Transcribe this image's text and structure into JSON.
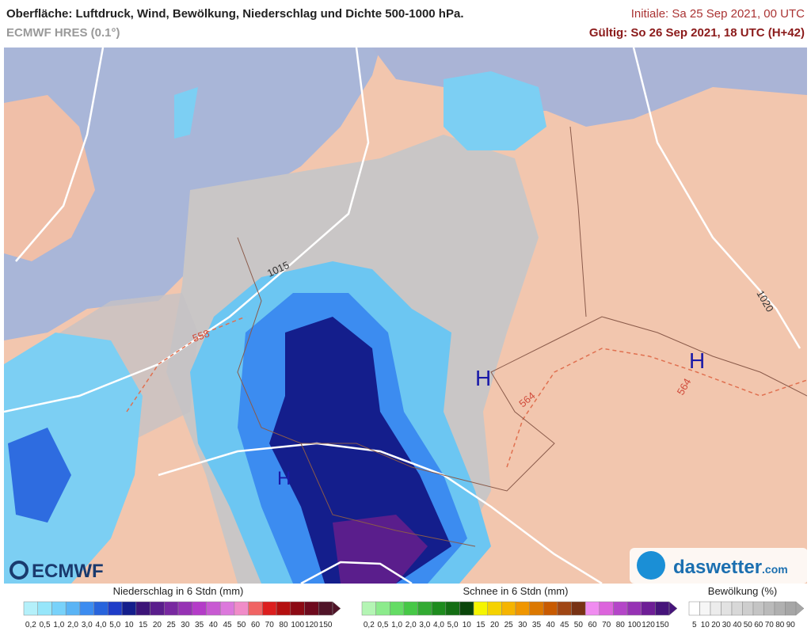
{
  "header": {
    "title": "Oberfläche: Luftdruck, Wind, Bewölkung, Niederschlag und Dichte 500-1000 hPa.",
    "model": "ECMWF HRES (0.1°)",
    "initial": "Initiale: Sa 25 Sep 2021, 00 UTC",
    "valid": "Gültig: So 26 Sep 2021, 18 UTC (H+42)"
  },
  "map": {
    "isobars": [
      "1015",
      "1020"
    ],
    "thickness": [
      "558",
      "564",
      "564"
    ],
    "pressure_centers": [
      "H",
      "H",
      "H"
    ]
  },
  "logos": {
    "left": "ECMWF",
    "right": "daswetter",
    "right_suffix": ".com"
  },
  "legends": [
    {
      "title": "Niederschlag in 6 Stdn (mm)",
      "labels": [
        "0,2",
        "0,5",
        "1,0",
        "2,0",
        "3,0",
        "4,0",
        "5,0",
        "10",
        "15",
        "20",
        "25",
        "30",
        "35",
        "40",
        "45",
        "50",
        "60",
        "70",
        "80",
        "100",
        "120",
        "150"
      ],
      "colors": [
        "#b4f0fa",
        "#96e6fa",
        "#78d2fa",
        "#5ab4f5",
        "#3c8cf0",
        "#2864dc",
        "#1e3cc8",
        "#141e8c",
        "#3c1478",
        "#5a1e8c",
        "#7828a0",
        "#9632b4",
        "#b43cc8",
        "#c85ad2",
        "#dc78dc",
        "#f08cc8",
        "#f06464",
        "#dc1e1e",
        "#b40f0f",
        "#8c0a14",
        "#6e0a1e",
        "#501428"
      ]
    },
    {
      "title": "Schnee in 6 Stdn (mm)",
      "labels": [
        "0,2",
        "0,5",
        "1,0",
        "2,0",
        "3,0",
        "4,0",
        "5,0",
        "10",
        "15",
        "20",
        "25",
        "30",
        "35",
        "40",
        "45",
        "50",
        "60",
        "70",
        "80",
        "100",
        "120",
        "150"
      ],
      "colors": [
        "#b4f5b4",
        "#8ceb8c",
        "#64dc64",
        "#46c846",
        "#32aa32",
        "#1e8c1e",
        "#146e14",
        "#0a460a",
        "#f5f500",
        "#f5d200",
        "#f5b400",
        "#f09600",
        "#dc7800",
        "#c85a00",
        "#a04614",
        "#783214",
        "#f08cf0",
        "#dc64dc",
        "#b446c8",
        "#9632b4",
        "#6e1e96",
        "#46147a"
      ]
    },
    {
      "title": "Bewölkung (%)",
      "labels": [
        "5",
        "10",
        "20",
        "30",
        "40",
        "50",
        "60",
        "70",
        "80",
        "90"
      ],
      "colors": [
        "#ffffff",
        "#f6f6f6",
        "#ececec",
        "#e2e2e2",
        "#d8d8d8",
        "#cecece",
        "#c4c4c4",
        "#bababa",
        "#b0b0b0",
        "#a6a6a6"
      ]
    }
  ]
}
